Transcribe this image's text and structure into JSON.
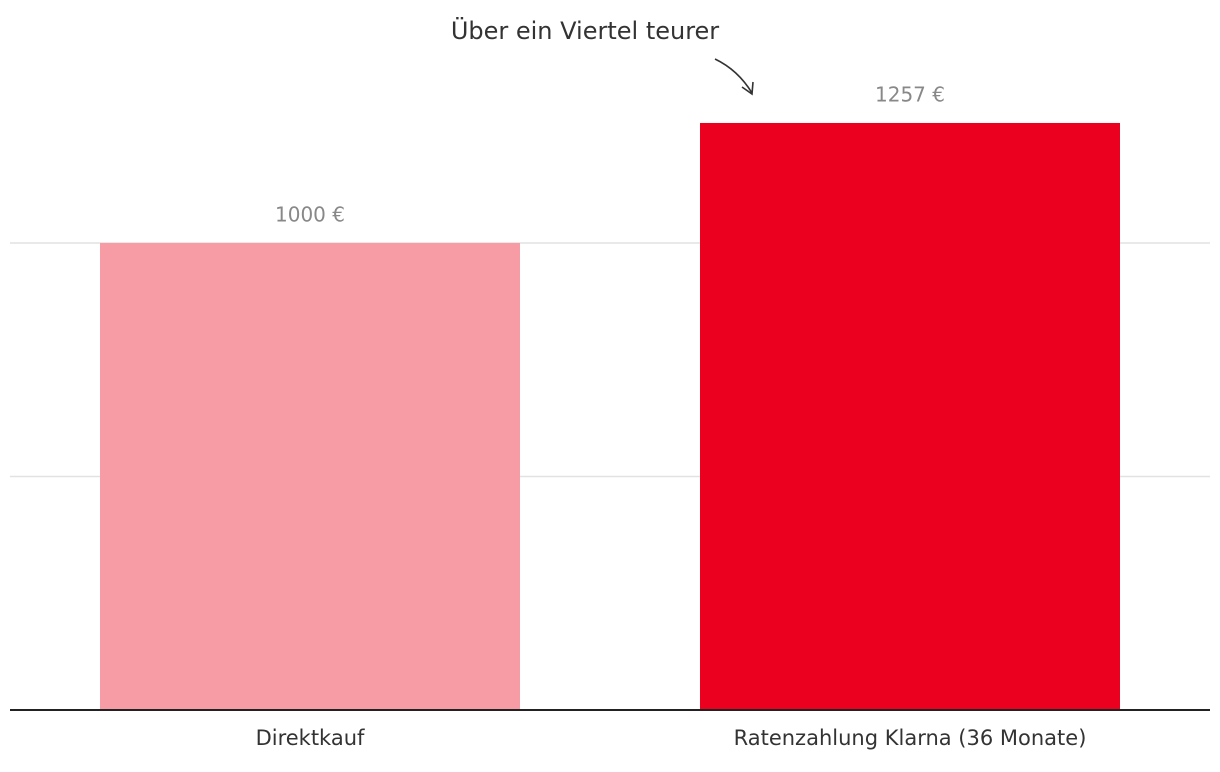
{
  "chart_data": {
    "type": "bar",
    "annotation": "Über ein Viertel teurer",
    "categories": [
      "Direktkauf",
      "Ratenzahlung Klarna (36 Monate)"
    ],
    "values": [
      1000,
      1257
    ],
    "value_labels": [
      "1000 €",
      "1257 €"
    ],
    "colors": [
      "#f79ba5",
      "#ec0020"
    ],
    "ylim": [
      0,
      1500
    ],
    "yticks": [
      0,
      500,
      1000
    ],
    "grid": true
  }
}
